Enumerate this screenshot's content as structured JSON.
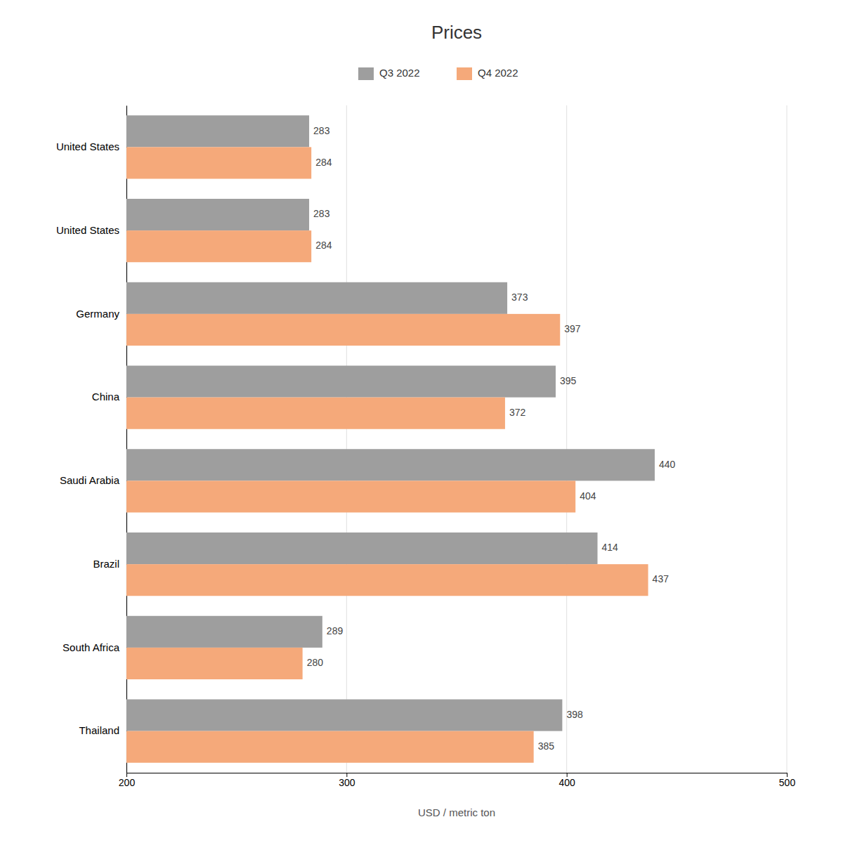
{
  "chart_data": {
    "type": "bar",
    "orientation": "horizontal",
    "title": "Prices",
    "xlabel": "USD / metric ton",
    "categories": [
      "United States",
      "United States",
      "Germany",
      "China",
      "Saudi Arabia",
      "Brazil",
      "South Africa",
      "Thailand"
    ],
    "series": [
      {
        "name": "Q3 2022",
        "color": "#9e9e9e",
        "values": [
          283,
          283,
          373,
          395,
          440,
          414,
          289,
          398
        ]
      },
      {
        "name": "Q4 2022",
        "color": "#f5a97a",
        "values": [
          284,
          284,
          397,
          372,
          404,
          437,
          280,
          385
        ]
      }
    ],
    "xlim": [
      200,
      500
    ],
    "xticks": [
      200,
      300,
      400,
      500
    ],
    "grid": true,
    "legend": "top",
    "data_labels": true
  }
}
